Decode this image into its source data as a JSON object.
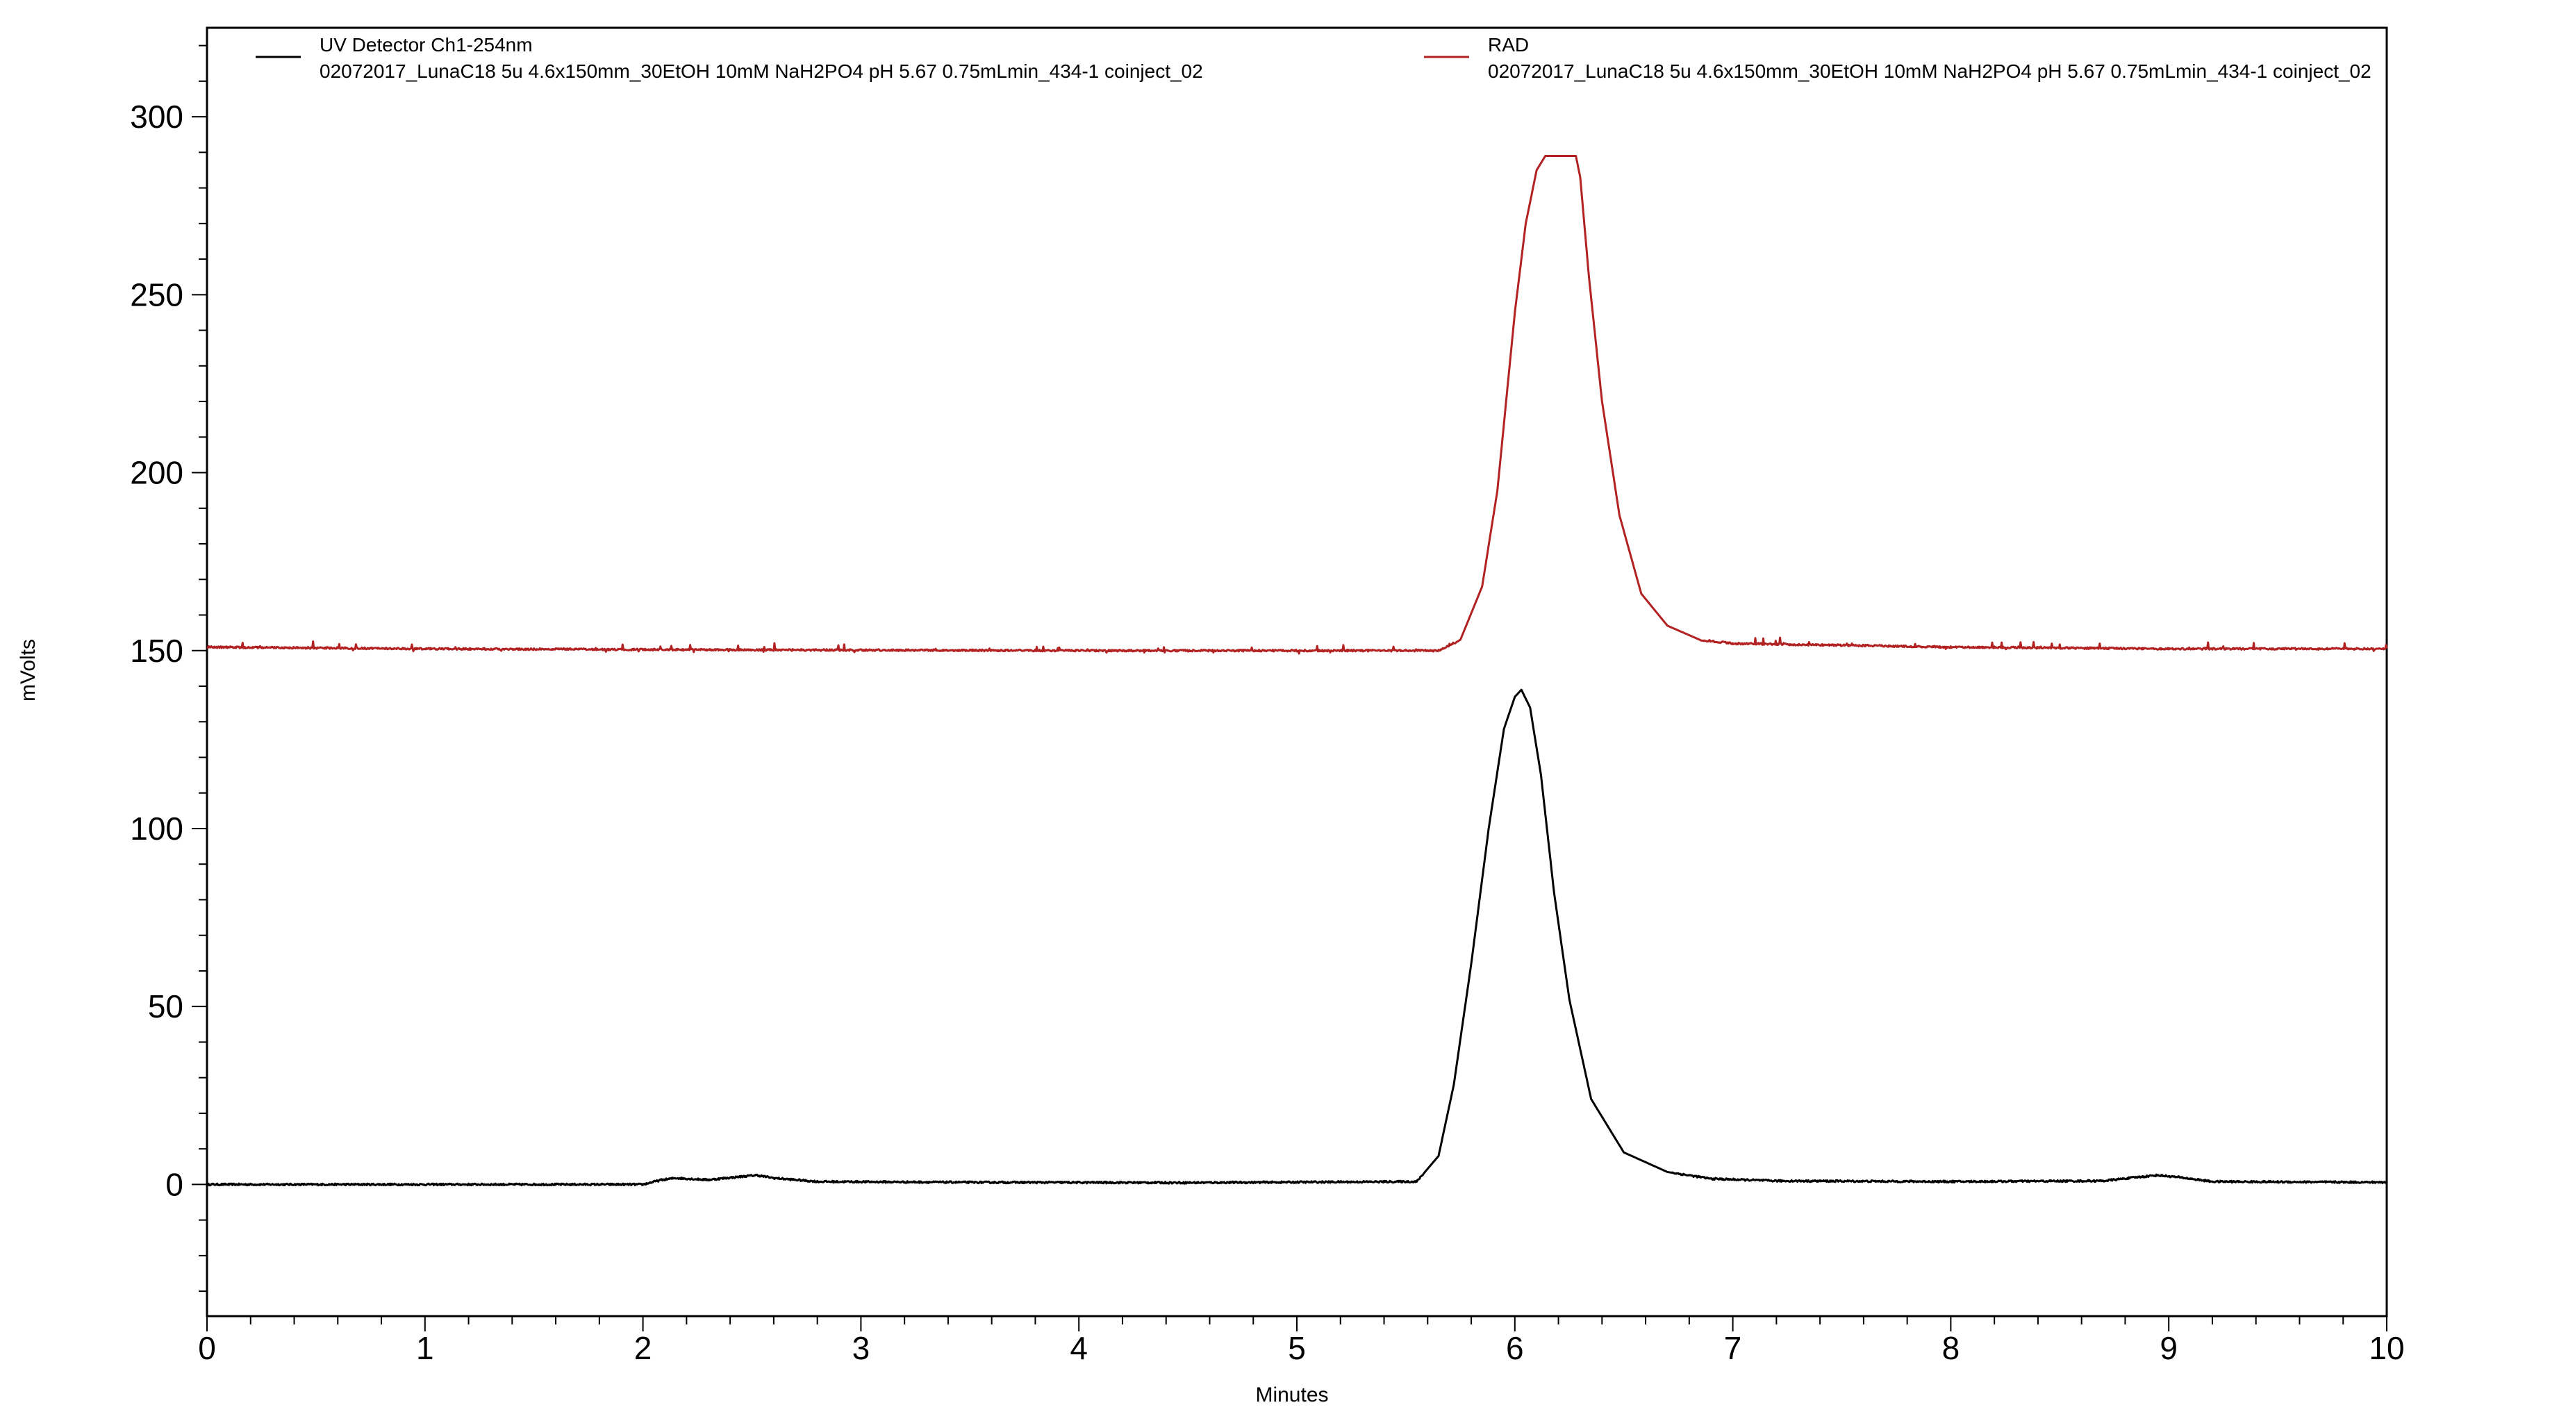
{
  "chart_data": {
    "type": "line",
    "xlabel": "Minutes",
    "ylabel": "mVolts",
    "xlim": [
      0,
      10
    ],
    "ylim": [
      -37,
      325
    ],
    "x_ticks": [
      0,
      1,
      2,
      3,
      4,
      5,
      6,
      7,
      8,
      9,
      10
    ],
    "y_ticks": [
      0,
      50,
      100,
      150,
      200,
      250,
      300
    ],
    "x_minor_step": 0.2,
    "y_minor_step": 10,
    "grid": false,
    "legend_position": "top",
    "series": [
      {
        "name": "UV Detector Ch1-254nm",
        "run": "02072017_LunaC18 5u 4.6x150mm_30EtOH 10mM NaH2PO4 pH 5.67 0.75mLmin_434-1 coinject_02",
        "color": "#000000",
        "baseline": 0.3,
        "x": [
          0,
          2.0,
          2.08,
          2.15,
          2.3,
          2.45,
          2.52,
          2.6,
          2.8,
          3.5,
          4.5,
          5.55,
          5.65,
          5.72,
          5.8,
          5.88,
          5.95,
          6.0,
          6.03,
          6.07,
          6.12,
          6.18,
          6.25,
          6.35,
          6.5,
          6.7,
          6.9,
          7.2,
          8.0,
          8.7,
          8.85,
          8.95,
          9.05,
          9.2,
          10.0
        ],
        "y": [
          0,
          0,
          1.2,
          1.8,
          1.3,
          2.2,
          2.6,
          1.8,
          0.8,
          0.6,
          0.5,
          0.8,
          8,
          28,
          62,
          100,
          128,
          137,
          139,
          134,
          115,
          82,
          52,
          24,
          9,
          3.5,
          1.6,
          1.0,
          0.8,
          1.0,
          2.0,
          2.6,
          2.0,
          0.8,
          0.6
        ]
      },
      {
        "name": "RAD",
        "run": "02072017_LunaC18 5u 4.6x150mm_30EtOH 10mM NaH2PO4 pH 5.67 0.75mLmin_434-1 coinject_02",
        "color": "#b22222",
        "baseline": 150,
        "x": [
          0,
          1.0,
          2.5,
          4.0,
          5.65,
          5.75,
          5.85,
          5.92,
          6.0,
          6.05,
          6.1,
          6.14,
          6.28,
          6.3,
          6.34,
          6.4,
          6.48,
          6.58,
          6.7,
          6.85,
          7.0,
          7.5,
          8.0,
          9.0,
          10.0
        ],
        "y": [
          151,
          150.5,
          150.2,
          150.0,
          150.0,
          153,
          168,
          195,
          245,
          270,
          285,
          289,
          289,
          283,
          255,
          220,
          188,
          166,
          157,
          153,
          152,
          151.5,
          151,
          150.5,
          150.5
        ]
      }
    ]
  }
}
